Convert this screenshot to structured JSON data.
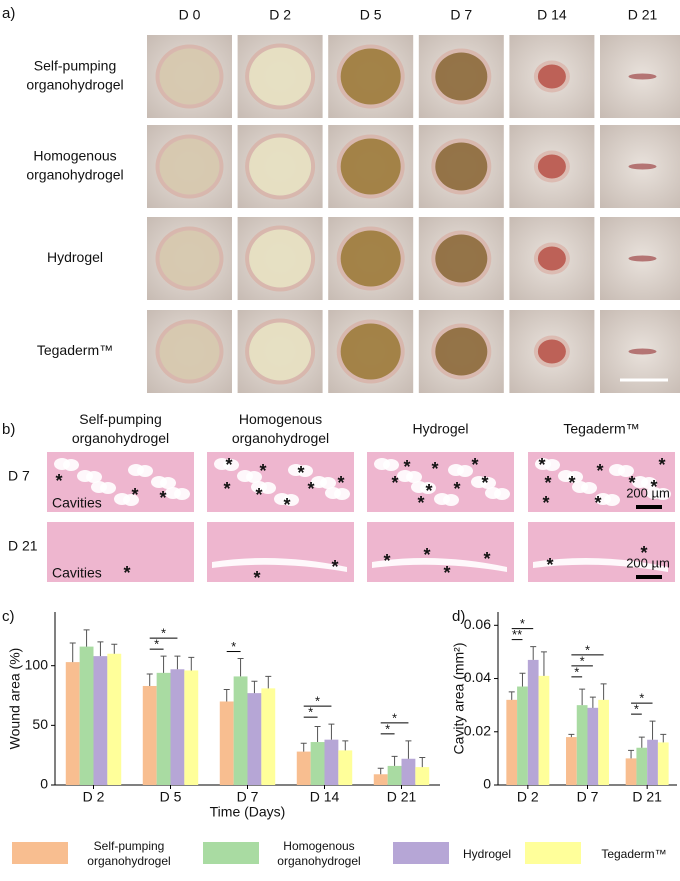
{
  "panel_labels": [
    "a)",
    "b)",
    "c)",
    "d)"
  ],
  "photo_panel": {
    "columns": [
      "D 0",
      "D 2",
      "D 5",
      "D 7",
      "D 14",
      "D 21"
    ],
    "rows": [
      {
        "lines": [
          "Self-pumping",
          "organohydrogel"
        ]
      },
      {
        "lines": [
          "Homogenous",
          "organohydrogel"
        ]
      },
      {
        "lines": [
          "Hydrogel"
        ]
      },
      {
        "lines": [
          "Tegaderm™"
        ]
      }
    ]
  },
  "histology_panel": {
    "columns": [
      {
        "lines": [
          "Self-pumping",
          "organohydrogel"
        ]
      },
      {
        "lines": [
          "Homogenous",
          "organohydrogel"
        ]
      },
      {
        "lines": [
          "Hydrogel"
        ]
      },
      {
        "lines": [
          "Tegaderm™"
        ]
      }
    ],
    "rows": [
      "D 7",
      "D 21"
    ],
    "cavities_label": "Cavities",
    "marker": "*",
    "scale_bar": "200 µm"
  },
  "chart_data": [
    {
      "type": "bar",
      "y_label": "Wound area (%)",
      "x_label": "Time (Days)",
      "categories": [
        "D 2",
        "D 5",
        "D 7",
        "D 14",
        "D 21"
      ],
      "ylim": [
        0,
        145
      ],
      "yticks": [
        0,
        50,
        100
      ],
      "series": [
        {
          "name": "Self-pumping organohydrogel",
          "color": "#f8be90",
          "values": [
            103,
            83,
            70,
            28,
            9
          ],
          "errors": [
            16,
            10,
            10,
            7,
            5
          ]
        },
        {
          "name": "Homogenous organohydrogel",
          "color": "#a9dba2",
          "values": [
            116,
            94,
            91,
            36,
            16
          ],
          "errors": [
            14,
            14,
            15,
            13,
            8
          ]
        },
        {
          "name": "Hydrogel",
          "color": "#b6a6d6",
          "values": [
            108,
            97,
            77,
            38,
            22
          ],
          "errors": [
            12,
            11,
            10,
            13,
            15
          ]
        },
        {
          "name": "Tegaderm™",
          "color": "#ffff9a",
          "values": [
            110,
            96,
            81,
            29,
            15
          ],
          "errors": [
            8,
            11,
            10,
            8,
            8
          ]
        }
      ],
      "annotations": [
        {
          "text": "*",
          "category": "D 5",
          "from": "Self-pumping organohydrogel",
          "to": "Homogenous organohydrogel"
        },
        {
          "text": "*",
          "category": "D 5",
          "from": "Self-pumping organohydrogel",
          "to": "Hydrogel"
        },
        {
          "text": "*",
          "category": "D 7",
          "from": "Self-pumping organohydrogel",
          "to": "Homogenous organohydrogel"
        },
        {
          "text": "*",
          "category": "D 14",
          "from": "Self-pumping organohydrogel",
          "to": "Homogenous organohydrogel"
        },
        {
          "text": "*",
          "category": "D 14",
          "from": "Self-pumping organohydrogel",
          "to": "Hydrogel"
        },
        {
          "text": "*",
          "category": "D 21",
          "from": "Self-pumping organohydrogel",
          "to": "Homogenous organohydrogel"
        },
        {
          "text": "*",
          "category": "D 21",
          "from": "Self-pumping organohydrogel",
          "to": "Hydrogel"
        }
      ]
    },
    {
      "type": "bar",
      "y_label": "Cavity area (mm²)",
      "categories": [
        "D 2",
        "D 7",
        "D 21"
      ],
      "ylim": [
        0,
        0.065
      ],
      "yticks": [
        0,
        0.02,
        0.04,
        0.06
      ],
      "series": [
        {
          "name": "Self-pumping organohydrogel",
          "color": "#f8be90",
          "values": [
            0.032,
            0.018,
            0.01
          ],
          "errors": [
            0.003,
            0.001,
            0.003
          ]
        },
        {
          "name": "Homogenous organohydrogel",
          "color": "#a9dba2",
          "values": [
            0.037,
            0.03,
            0.014
          ],
          "errors": [
            0.005,
            0.006,
            0.004
          ]
        },
        {
          "name": "Hydrogel",
          "color": "#b6a6d6",
          "values": [
            0.047,
            0.029,
            0.017
          ],
          "errors": [
            0.005,
            0.004,
            0.007
          ]
        },
        {
          "name": "Tegaderm™",
          "color": "#ffff9a",
          "values": [
            0.041,
            0.032,
            0.016
          ],
          "errors": [
            0.009,
            0.006,
            0.003
          ]
        }
      ],
      "annotations": [
        {
          "text": "**",
          "category": "D 2",
          "from": "Self-pumping organohydrogel",
          "to": "Homogenous organohydrogel"
        },
        {
          "text": "*",
          "category": "D 2",
          "from": "Self-pumping organohydrogel",
          "to": "Hydrogel"
        },
        {
          "text": "*",
          "category": "D 7",
          "from": "Self-pumping organohydrogel",
          "to": "Homogenous organohydrogel"
        },
        {
          "text": "*",
          "category": "D 7",
          "from": "Self-pumping organohydrogel",
          "to": "Hydrogel"
        },
        {
          "text": "*",
          "category": "D 7",
          "from": "Self-pumping organohydrogel",
          "to": "Tegaderm™"
        },
        {
          "text": "*",
          "category": "D 21",
          "from": "Self-pumping organohydrogel",
          "to": "Homogenous organohydrogel"
        },
        {
          "text": "*",
          "category": "D 21",
          "from": "Self-pumping organohydrogel",
          "to": "Hydrogel"
        }
      ]
    }
  ]
}
